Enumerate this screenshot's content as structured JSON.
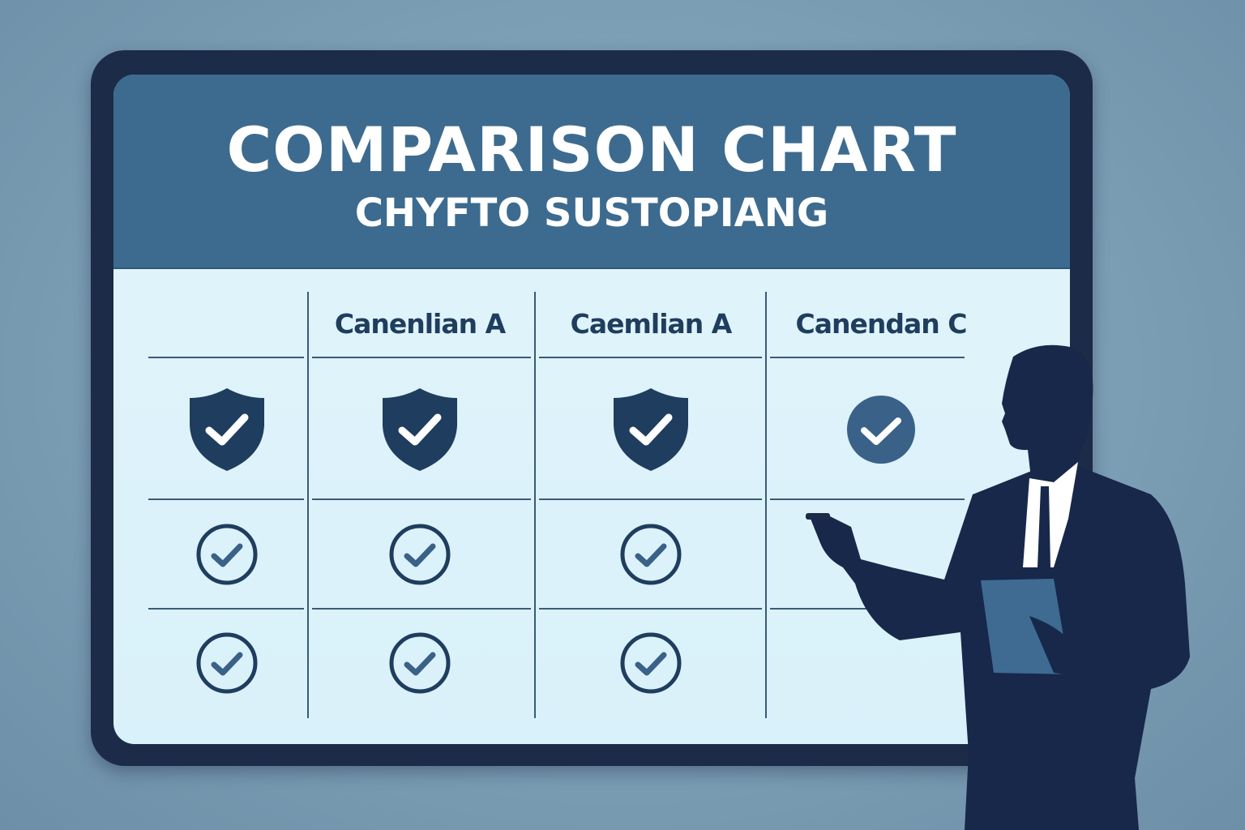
{
  "chart": {
    "title": "COMPARISON CHART",
    "subtitle": "CHYFTO SUSTOPIANG",
    "columns": [
      "",
      "Canenlian A",
      "Caemlian A",
      "Canendan C"
    ],
    "rows": [
      [
        "shield-check",
        "shield-check",
        "shield-check",
        "circle-check-filled"
      ],
      [
        "circle-check",
        "circle-check",
        "circle-check",
        ""
      ],
      [
        "circle-check",
        "circle-check",
        "circle-check",
        ""
      ]
    ]
  },
  "colors": {
    "background": "#7a9db3",
    "frame": "#1c2b47",
    "header": "#3d6b8f",
    "screen": "#dff3fa",
    "icon": "#1f3d5e",
    "silhouette": "#17284a"
  }
}
